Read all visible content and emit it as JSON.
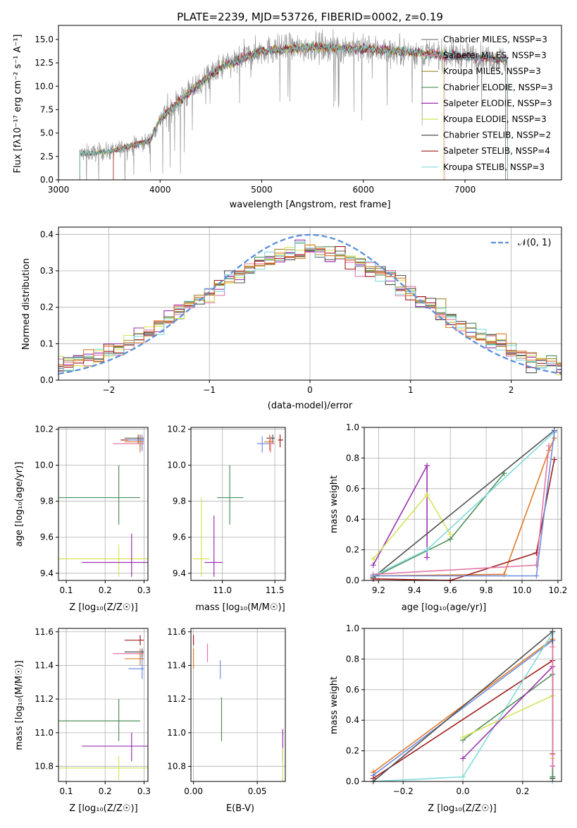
{
  "colors": [
    "#808080",
    "#e377a6",
    "#a08a32",
    "#4f8f5a",
    "#9b30b0",
    "#d3e35a",
    "#505050",
    "#a01a1a",
    "#80dadb",
    "#e07a2a",
    "#6f8ee0"
  ],
  "chart_data": [
    {
      "type": "line",
      "title": "PLATE=2239, MJD=53726, FIBERID=0002, z=0.19",
      "xlabel": "wavelength [Angstrom, rest frame]",
      "ylabel": "Flux [fλ10⁻¹⁷ erg cm⁻² s⁻¹ A⁻¹]",
      "xlim": [
        3000,
        7950
      ],
      "ylim": [
        0,
        16.5
      ],
      "xticks": [
        "3000",
        "4000",
        "5000",
        "6000",
        "7000"
      ],
      "xtick_values": [
        3000,
        4000,
        5000,
        6000,
        7000
      ],
      "yticks": [
        "0.0",
        "2.5",
        "5.0",
        "7.5",
        "10.0",
        "12.5",
        "15.0"
      ],
      "ytick_values": [
        0,
        2.5,
        5,
        7.5,
        10,
        12.5,
        15
      ],
      "legend_position": "upper-right",
      "series": [
        {
          "name": "Chabrier MILES, NSSP=3",
          "color": "#808080"
        },
        {
          "name": "Salpeter MILES, NSSP=3",
          "color": "#e377a6"
        },
        {
          "name": "Kroupa MILES, NSSP=3",
          "color": "#a08a32"
        },
        {
          "name": "Chabrier ELODIE, NSSP=3",
          "color": "#4f8f5a"
        },
        {
          "name": "Salpeter ELODIE, NSSP=3",
          "color": "#9b30b0"
        },
        {
          "name": "Kroupa ELODIE, NSSP=3",
          "color": "#d3e35a"
        },
        {
          "name": "Chabrier STELIB, NSSP=2",
          "color": "#505050"
        },
        {
          "name": "Salpeter STELIB, NSSP=4",
          "color": "#a01a1a"
        },
        {
          "name": "Kroupa STELIB, NSSP=3",
          "color": "#80dadb"
        }
      ],
      "continuum": {
        "x": [
          3210,
          3500,
          3900,
          4000,
          4300,
          4600,
          5000,
          5500,
          6000,
          6500,
          7000,
          7500
        ],
        "y": [
          2.8,
          3.0,
          4.2,
          6.5,
          9.5,
          12.0,
          13.8,
          14.2,
          14.0,
          13.6,
          13.2,
          12.8
        ]
      }
    },
    {
      "type": "line",
      "xlabel": "(data-model)/error",
      "ylabel": "Normed distribution",
      "xlim": [
        -2.5,
        2.5
      ],
      "ylim": [
        0,
        0.42
      ],
      "xticks": [
        "−2",
        "−1",
        "0",
        "1",
        "2"
      ],
      "xtick_values": [
        -2,
        -1,
        0,
        1,
        2
      ],
      "yticks": [
        "0.0",
        "0.1",
        "0.2",
        "0.3",
        "0.4"
      ],
      "ytick_values": [
        0,
        0.1,
        0.2,
        0.3,
        0.4
      ],
      "legend": [
        "𝒩(0, 1)"
      ],
      "legend_position": "upper-right",
      "gaussian_color": "#5b8fd9",
      "histogram_bins": [
        -2.5,
        2.5
      ],
      "bin_width": 0.1
    },
    {
      "type": "scatter",
      "xlabel": "Z [log₁₀(Z/Z☉)]",
      "ylabel": "age  [log₁₀(age/yr)]",
      "xlim": [
        0.08,
        0.31
      ],
      "ylim": [
        9.36,
        10.21
      ],
      "xticks": [
        "0.1",
        "0.2",
        "0.3"
      ],
      "xtick_values": [
        0.1,
        0.2,
        0.3
      ],
      "yticks": [
        "9.4",
        "9.6",
        "9.8",
        "10.0",
        "10.2"
      ],
      "ytick_values": [
        9.4,
        9.6,
        9.8,
        10.0,
        10.2
      ],
      "points": [
        {
          "x": 0.235,
          "y": 9.82,
          "xe": [
            0.0,
            0.29
          ],
          "ye": [
            9.67,
            10.0
          ],
          "c": "#4f8f5a"
        },
        {
          "x": 0.235,
          "y": 9.48,
          "xe": [
            0.08,
            0.31
          ],
          "ye": [
            9.38,
            9.56
          ],
          "c": "#d3e35a"
        },
        {
          "x": 0.268,
          "y": 9.46,
          "xe": [
            0.14,
            0.31
          ],
          "ye": [
            9.38,
            9.62
          ],
          "c": "#9b30b0"
        },
        {
          "x": 0.285,
          "y": 10.15,
          "xe": [
            0.25,
            0.3
          ],
          "ye": [
            10.12,
            10.17
          ],
          "c": "#505050"
        },
        {
          "x": 0.29,
          "y": 10.14,
          "xe": [
            0.24,
            0.3
          ],
          "ye": [
            10.1,
            10.17
          ],
          "c": "#a01a1a"
        },
        {
          "x": 0.29,
          "y": 10.12,
          "xe": [
            0.22,
            0.3
          ],
          "ye": [
            10.07,
            10.16
          ],
          "c": "#e377a6"
        },
        {
          "x": 0.29,
          "y": 10.13,
          "xe": [
            0.25,
            0.3
          ],
          "ye": [
            10.08,
            10.17
          ],
          "c": "#e07a2a"
        },
        {
          "x": 0.295,
          "y": 10.14,
          "xe": [
            0.26,
            0.3
          ],
          "ye": [
            10.08,
            10.17
          ],
          "c": "#6f8ee0"
        }
      ]
    },
    {
      "type": "scatter",
      "xlabel": "mass [log₁₀(M/M☉)]",
      "ylabel": "",
      "xlim": [
        10.7,
        11.6
      ],
      "ylim": [
        9.36,
        10.21
      ],
      "xticks": [
        "11.0",
        "11.5"
      ],
      "xtick_values": [
        11.0,
        11.5
      ],
      "yticks": [
        "9.4",
        "9.6",
        "9.8",
        "10.0",
        "10.2"
      ],
      "ytick_values": [
        9.4,
        9.6,
        9.8,
        10.0,
        10.2
      ],
      "points": [
        {
          "x": 11.07,
          "y": 9.82,
          "xe": [
            10.95,
            11.2
          ],
          "ye": [
            9.67,
            10.0
          ],
          "c": "#4f8f5a"
        },
        {
          "x": 10.8,
          "y": 9.48,
          "xe": [
            10.72,
            10.88
          ],
          "ye": [
            9.38,
            9.82
          ],
          "c": "#d3e35a"
        },
        {
          "x": 10.92,
          "y": 9.46,
          "xe": [
            10.83,
            11.0
          ],
          "ye": [
            9.38,
            9.72
          ],
          "c": "#9b30b0"
        },
        {
          "x": 11.48,
          "y": 10.15,
          "xe": [
            11.42,
            11.5
          ],
          "ye": [
            10.12,
            10.17
          ],
          "c": "#505050"
        },
        {
          "x": 11.55,
          "y": 10.14,
          "xe": [
            11.53,
            11.58
          ],
          "ye": [
            10.1,
            10.17
          ],
          "c": "#a01a1a"
        },
        {
          "x": 11.46,
          "y": 10.12,
          "xe": [
            11.43,
            11.5
          ],
          "ye": [
            10.07,
            10.16
          ],
          "c": "#e377a6"
        },
        {
          "x": 11.45,
          "y": 10.13,
          "xe": [
            11.4,
            11.49
          ],
          "ye": [
            10.08,
            10.17
          ],
          "c": "#e07a2a"
        },
        {
          "x": 11.38,
          "y": 10.12,
          "xe": [
            11.33,
            11.45
          ],
          "ye": [
            10.07,
            10.16
          ],
          "c": "#6f8ee0"
        }
      ]
    },
    {
      "type": "line",
      "xlabel": "age  [log₁₀(age/yr)]",
      "ylabel": "mass weight",
      "xlim": [
        9.12,
        10.22
      ],
      "ylim": [
        0,
        1
      ],
      "xticks": [
        "9.2",
        "9.4",
        "9.6",
        "9.8",
        "10.0",
        "10.2"
      ],
      "xtick_values": [
        9.2,
        9.4,
        9.6,
        9.8,
        10.0,
        10.2
      ],
      "yticks": [
        "0.0",
        "0.2",
        "0.4",
        "0.6",
        "0.8",
        "1.0"
      ],
      "ytick_values": [
        0,
        0.2,
        0.4,
        0.6,
        0.8,
        1.0
      ],
      "series": [
        {
          "c": "#9b30b0",
          "x": [
            9.17,
            9.47,
            9.47
          ],
          "y": [
            0.1,
            0.75,
            0.15
          ]
        },
        {
          "c": "#d3e35a",
          "x": [
            9.17,
            9.47,
            9.6
          ],
          "y": [
            0.14,
            0.56,
            0.3
          ]
        },
        {
          "c": "#4f8f5a",
          "x": [
            9.17,
            9.6,
            9.9
          ],
          "y": [
            0.02,
            0.27,
            0.7
          ]
        },
        {
          "c": "#505050",
          "x": [
            9.17,
            10.18
          ],
          "y": [
            0.02,
            0.98
          ]
        },
        {
          "c": "#80dadb",
          "x": [
            9.17,
            9.47,
            10.18
          ],
          "y": [
            0.03,
            0.2,
            0.97
          ]
        },
        {
          "c": "#e07a2a",
          "x": [
            9.17,
            9.9,
            10.15,
            10.18
          ],
          "y": [
            0.03,
            0.04,
            0.85,
            0.93
          ]
        },
        {
          "c": "#a01a1a",
          "x": [
            9.17,
            9.6,
            10.08,
            10.18
          ],
          "y": [
            0.01,
            0.0,
            0.18,
            0.79
          ]
        },
        {
          "c": "#e377a6",
          "x": [
            9.17,
            10.08,
            10.15
          ],
          "y": [
            0.04,
            0.1,
            0.88
          ]
        },
        {
          "c": "#6f8ee0",
          "x": [
            9.17,
            10.08,
            10.18
          ],
          "y": [
            0.03,
            0.03,
            0.97
          ]
        }
      ]
    },
    {
      "type": "scatter",
      "xlabel": "Z [log₁₀(Z/Z☉)]",
      "ylabel": "mass [log₁₀(M/M☉)]",
      "xlim": [
        0.08,
        0.31
      ],
      "ylim": [
        10.71,
        11.62
      ],
      "xticks": [
        "0.1",
        "0.2",
        "0.3"
      ],
      "xtick_values": [
        0.1,
        0.2,
        0.3
      ],
      "yticks": [
        "10.8",
        "11.0",
        "11.2",
        "11.4",
        "11.6"
      ],
      "ytick_values": [
        10.8,
        11.0,
        11.2,
        11.4,
        11.6
      ],
      "points": [
        {
          "x": 0.235,
          "y": 11.07,
          "xe": [
            0.0,
            0.29
          ],
          "ye": [
            10.95,
            11.2
          ],
          "c": "#4f8f5a"
        },
        {
          "x": 0.235,
          "y": 10.79,
          "xe": [
            0.08,
            0.31
          ],
          "ye": [
            10.72,
            10.86
          ],
          "c": "#d3e35a"
        },
        {
          "x": 0.268,
          "y": 10.92,
          "xe": [
            0.14,
            0.31
          ],
          "ye": [
            10.83,
            11.0
          ],
          "c": "#9b30b0"
        },
        {
          "x": 0.29,
          "y": 11.55,
          "xe": [
            0.25,
            0.3
          ],
          "ye": [
            11.52,
            11.58
          ],
          "c": "#a01a1a"
        },
        {
          "x": 0.295,
          "y": 11.48,
          "xe": [
            0.25,
            0.3
          ],
          "ye": [
            11.45,
            11.5
          ],
          "c": "#505050"
        },
        {
          "x": 0.29,
          "y": 11.47,
          "xe": [
            0.22,
            0.3
          ],
          "ye": [
            11.43,
            11.5
          ],
          "c": "#e377a6"
        },
        {
          "x": 0.29,
          "y": 11.44,
          "xe": [
            0.25,
            0.3
          ],
          "ye": [
            11.4,
            11.49
          ],
          "c": "#e07a2a"
        },
        {
          "x": 0.295,
          "y": 11.38,
          "xe": [
            0.26,
            0.3
          ],
          "ye": [
            11.32,
            11.45
          ],
          "c": "#6f8ee0"
        }
      ]
    },
    {
      "type": "scatter",
      "xlabel": "E(B-V)",
      "ylabel": "",
      "xlim": [
        -0.002,
        0.072
      ],
      "ylim": [
        10.71,
        11.62
      ],
      "xticks": [
        "0.00",
        "0.05"
      ],
      "xtick_values": [
        0,
        0.05
      ],
      "yticks": [
        "10.8",
        "11.0",
        "11.2",
        "11.4",
        "11.6"
      ],
      "ytick_values": [
        10.8,
        11.0,
        11.2,
        11.4,
        11.6
      ],
      "points": [
        {
          "x": 0.0,
          "y": 11.55,
          "ye": [
            11.52,
            11.58
          ],
          "c": "#a01a1a"
        },
        {
          "x": 0.0,
          "y": 11.45,
          "ye": [
            11.38,
            11.5
          ],
          "c": "#e07a2a"
        },
        {
          "x": 0.011,
          "y": 11.47,
          "ye": [
            11.42,
            11.53
          ],
          "c": "#e377a6"
        },
        {
          "x": 0.021,
          "y": 11.37,
          "ye": [
            11.32,
            11.43
          ],
          "c": "#6f8ee0"
        },
        {
          "x": 0.022,
          "y": 11.07,
          "ye": [
            10.95,
            11.21
          ],
          "c": "#4f8f5a"
        },
        {
          "x": 0.07,
          "y": 10.92,
          "ye": [
            10.83,
            11.02
          ],
          "c": "#9b30b0"
        },
        {
          "x": 0.07,
          "y": 10.8,
          "ye": [
            10.71,
            10.91
          ],
          "c": "#d3e35a"
        }
      ]
    },
    {
      "type": "line",
      "xlabel": "Z [log₁₀(Z/Z☉)]",
      "ylabel": "mass weight",
      "xlim": [
        -0.33,
        0.33
      ],
      "ylim": [
        0,
        1
      ],
      "xticks": [
        "−0.2",
        "0.0",
        "0.2"
      ],
      "xtick_values": [
        -0.2,
        0,
        0.2
      ],
      "yticks": [
        "0.0",
        "0.2",
        "0.4",
        "0.6",
        "0.8",
        "1.0"
      ],
      "ytick_values": [
        0,
        0.2,
        0.4,
        0.6,
        0.8,
        1.0
      ],
      "series": [
        {
          "c": "#e07a2a",
          "x": [
            -0.3,
            0.3,
            0.3
          ],
          "y": [
            0.06,
            0.93,
            0.02
          ]
        },
        {
          "c": "#6f8ee0",
          "x": [
            -0.3,
            0.3,
            0.3
          ],
          "y": [
            0.04,
            0.92,
            0.03
          ]
        },
        {
          "c": "#a01a1a",
          "x": [
            -0.3,
            0.3,
            0.3
          ],
          "y": [
            0.02,
            0.79,
            0.18
          ]
        },
        {
          "c": "#80dadb",
          "x": [
            -0.3,
            0.0,
            0.3,
            0.3
          ],
          "y": [
            0.0,
            0.03,
            0.97,
            0.0
          ]
        },
        {
          "c": "#505050",
          "x": [
            -0.3,
            0.3,
            0.3
          ],
          "y": [
            0.0,
            0.98,
            0.02
          ]
        },
        {
          "c": "#4f8f5a",
          "x": [
            0.0,
            0.3,
            0.3
          ],
          "y": [
            0.27,
            0.7,
            0.03
          ]
        },
        {
          "c": "#d3e35a",
          "x": [
            0.0,
            0.3,
            0.3
          ],
          "y": [
            0.29,
            0.56,
            0.15
          ]
        },
        {
          "c": "#9b30b0",
          "x": [
            0.0,
            0.3,
            0.3
          ],
          "y": [
            0.15,
            0.75,
            0.1
          ]
        },
        {
          "c": "#e377a6",
          "x": [
            0.3,
            0.3
          ],
          "y": [
            0.1,
            0.88
          ]
        }
      ]
    }
  ]
}
